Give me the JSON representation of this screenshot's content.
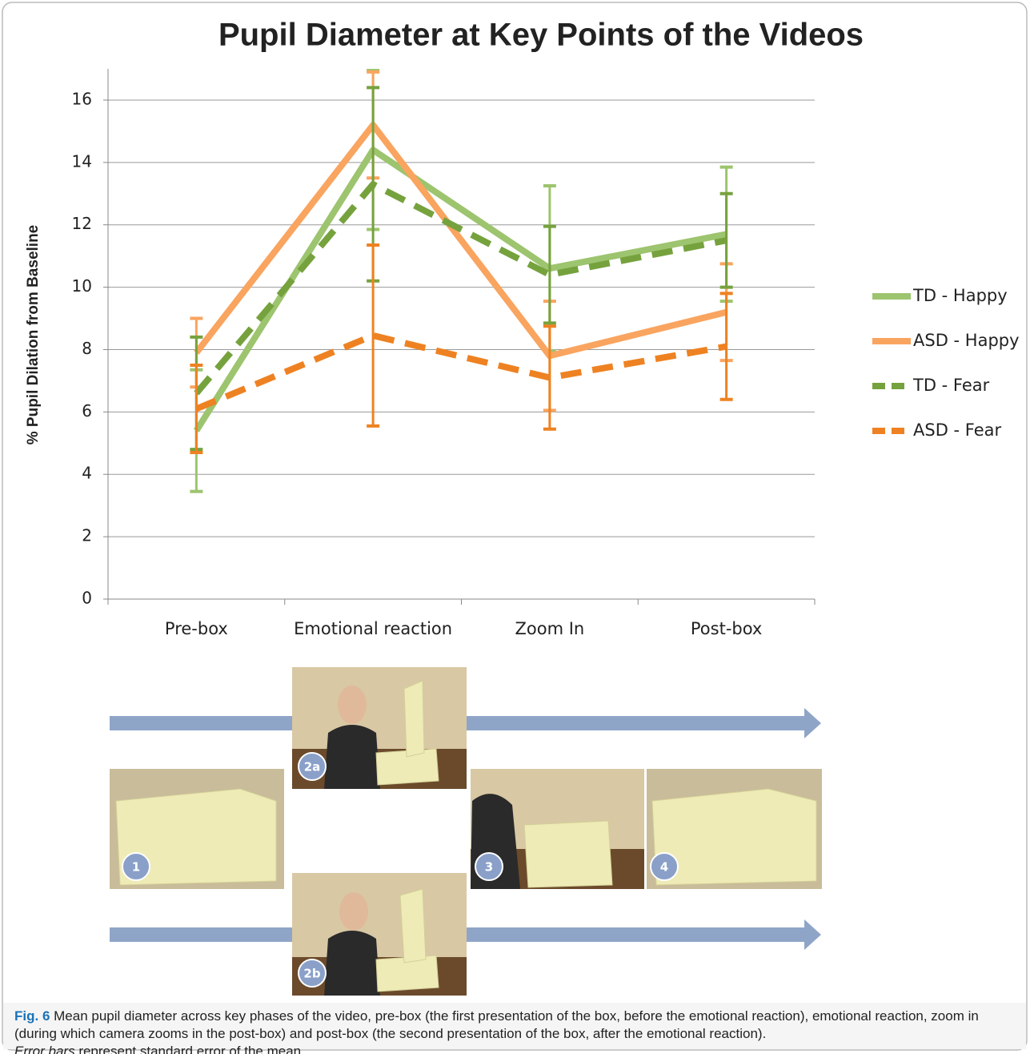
{
  "chart_data": {
    "type": "line",
    "title": "Pupil Diameter at Key Points of the Videos",
    "y_label": "% Pupil Dilation from Baseline",
    "categories": [
      "Pre-box",
      "Emotional reaction",
      "Zoom In",
      "Post-box"
    ],
    "series": [
      {
        "name": "TD - Happy",
        "color": "#9dc46e",
        "style": "solid",
        "values": [
          5.4,
          14.4,
          10.6,
          11.7
        ],
        "errors": [
          1.95,
          2.55,
          2.65,
          2.15
        ]
      },
      {
        "name": "ASD - Happy",
        "color": "#f9a45f",
        "style": "solid",
        "values": [
          7.9,
          15.2,
          7.8,
          9.2
        ],
        "errors": [
          1.1,
          1.7,
          1.75,
          1.55
        ]
      },
      {
        "name": "TD - Fear",
        "color": "#76a23e",
        "style": "dashed",
        "values": [
          6.6,
          13.3,
          10.4,
          11.5
        ],
        "errors": [
          1.8,
          3.1,
          1.55,
          1.5
        ]
      },
      {
        "name": "ASD - Fear",
        "color": "#ee8222",
        "style": "dashed",
        "values": [
          6.1,
          8.45,
          7.1,
          8.1
        ],
        "errors": [
          1.4,
          2.9,
          1.65,
          1.7
        ]
      }
    ],
    "ylim": [
      0,
      17
    ],
    "yticks": [
      0,
      2,
      4,
      6,
      8,
      10,
      12,
      14,
      16
    ],
    "grid": true,
    "legend": "right"
  },
  "panels": [
    "1",
    "2a",
    "2b",
    "3",
    "4"
  ],
  "caption": {
    "label": "Fig. 6",
    "text": "Mean pupil diameter across key phases of the video, pre-box (the first presentation of the box, before the emotional reaction), emotional reaction, zoom in (during which camera zooms in the post-box) and post-box (the second presentation of the box, after the emotional reaction).",
    "emphasis": "Error bars",
    "text_end": "represent standard error of the mean"
  }
}
